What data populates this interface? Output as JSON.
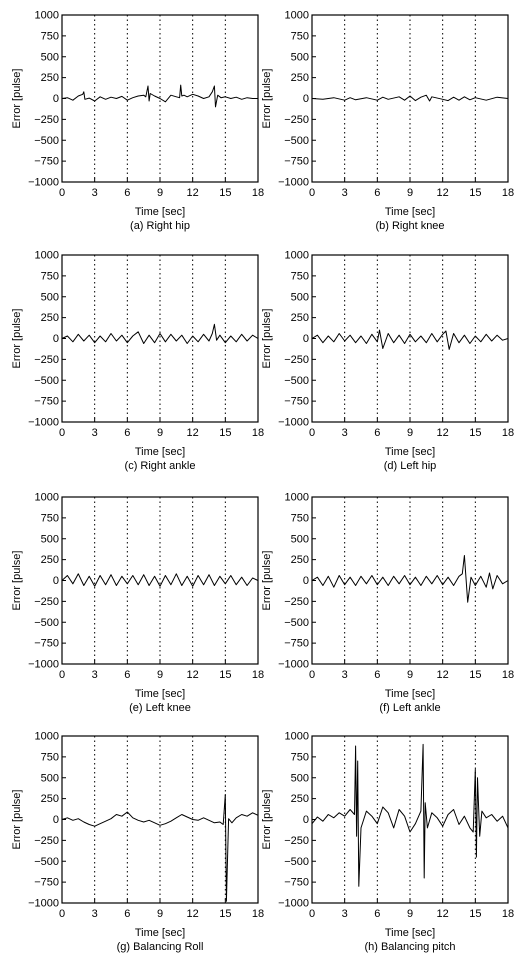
{
  "colors": {
    "axis": "#000000",
    "signal": "#000000",
    "dotted_guides": "#000000",
    "background": "#ffffff"
  },
  "chart_data": [
    {
      "type": "line",
      "caption": "(a) Right hip",
      "xlabel": "Time [sec]",
      "ylabel": "Error [pulse]",
      "xlim": [
        0,
        18
      ],
      "ylim": [
        -1000,
        1000
      ],
      "xticks": [
        0,
        3,
        6,
        9,
        12,
        15,
        18
      ],
      "yticks": [
        1000,
        750,
        500,
        250,
        0,
        -250,
        -500,
        -750,
        -1000
      ],
      "vlines": [
        3,
        6,
        9,
        12,
        15
      ],
      "grid": false,
      "series": [
        {
          "x": [
            0,
            0.5,
            1,
            1.5,
            1.9,
            2.0,
            2.1,
            2.5,
            3,
            3.5,
            4,
            4.5,
            5,
            5.5,
            6,
            6.5,
            7,
            7.5,
            7.7,
            7.9,
            8.0,
            8.1,
            8.5,
            9,
            9.5,
            10,
            10.5,
            10.8,
            10.9,
            11.0,
            11.2,
            11.5,
            12,
            12.5,
            13,
            13.5,
            13.8,
            14.0,
            14.1,
            14.3,
            14.6,
            15,
            15.5,
            16,
            16.5,
            17,
            17.5,
            18
          ],
          "y": [
            0,
            10,
            -20,
            30,
            50,
            80,
            -10,
            5,
            -30,
            20,
            -10,
            15,
            0,
            25,
            -20,
            10,
            30,
            40,
            20,
            150,
            -30,
            60,
            30,
            0,
            -40,
            40,
            20,
            10,
            160,
            30,
            40,
            20,
            50,
            30,
            0,
            20,
            80,
            150,
            -100,
            40,
            10,
            20,
            0,
            15,
            -10,
            10,
            0,
            0
          ]
        }
      ]
    },
    {
      "type": "line",
      "caption": "(b) Right knee",
      "xlabel": "Time [sec]",
      "ylabel": "Error [pulse]",
      "xlim": [
        0,
        18
      ],
      "ylim": [
        -1000,
        1000
      ],
      "xticks": [
        0,
        3,
        6,
        9,
        12,
        15,
        18
      ],
      "yticks": [
        1000,
        750,
        500,
        250,
        0,
        -250,
        -500,
        -750,
        -1000
      ],
      "vlines": [
        3,
        6,
        9,
        12,
        15
      ],
      "grid": false,
      "series": [
        {
          "x": [
            0,
            1,
            2,
            3,
            3.5,
            4,
            5,
            6,
            6.5,
            7,
            8,
            8.5,
            9,
            9.5,
            10,
            10.5,
            10.8,
            11,
            12,
            12.5,
            13,
            13.5,
            14,
            14.5,
            15,
            16,
            17,
            18
          ],
          "y": [
            0,
            -10,
            10,
            -20,
            10,
            -15,
            10,
            -20,
            15,
            -10,
            20,
            -20,
            30,
            -25,
            15,
            40,
            -30,
            20,
            -10,
            -25,
            15,
            -20,
            20,
            -15,
            10,
            -20,
            15,
            0
          ]
        }
      ]
    },
    {
      "type": "line",
      "caption": "(c) Right ankle",
      "xlabel": "Time [sec]",
      "ylabel": "Error [pulse]",
      "xlim": [
        0,
        18
      ],
      "ylim": [
        -1000,
        1000
      ],
      "xticks": [
        0,
        3,
        6,
        9,
        12,
        15,
        18
      ],
      "yticks": [
        1000,
        750,
        500,
        250,
        0,
        -250,
        -500,
        -750,
        -1000
      ],
      "vlines": [
        3,
        6,
        9,
        12,
        15
      ],
      "grid": false,
      "series": [
        {
          "x": [
            0,
            0.5,
            1,
            1.5,
            2,
            2.5,
            3,
            3.5,
            4,
            4.5,
            5,
            5.5,
            6,
            6.5,
            7,
            7.5,
            8,
            8.5,
            9,
            9.5,
            10,
            10.5,
            11,
            11.5,
            12,
            12.5,
            13,
            13.5,
            13.8,
            14.0,
            14.2,
            14.5,
            15,
            15.5,
            16,
            16.5,
            17,
            17.5,
            18
          ],
          "y": [
            0,
            30,
            -40,
            50,
            -30,
            40,
            -50,
            30,
            -40,
            60,
            -30,
            40,
            -50,
            30,
            80,
            -60,
            40,
            -50,
            60,
            -40,
            50,
            -30,
            40,
            -60,
            30,
            -40,
            50,
            -30,
            60,
            170,
            -20,
            40,
            -50,
            30,
            -40,
            50,
            -30,
            40,
            0
          ]
        }
      ]
    },
    {
      "type": "line",
      "caption": "(d) Left hip",
      "xlabel": "Time [sec]",
      "ylabel": "Error [pulse]",
      "xlim": [
        0,
        18
      ],
      "ylim": [
        -1000,
        1000
      ],
      "xticks": [
        0,
        3,
        6,
        9,
        12,
        15,
        18
      ],
      "yticks": [
        1000,
        750,
        500,
        250,
        0,
        -250,
        -500,
        -750,
        -1000
      ],
      "vlines": [
        3,
        6,
        9,
        12,
        15
      ],
      "grid": false,
      "series": [
        {
          "x": [
            0,
            0.5,
            1,
            1.5,
            2,
            2.5,
            3,
            3.5,
            4,
            4.5,
            5,
            5.5,
            6,
            6.2,
            6.5,
            7,
            7.5,
            8,
            8.5,
            9,
            9.5,
            10,
            10.5,
            11,
            11.5,
            12,
            12.3,
            12.6,
            13,
            13.5,
            14,
            14.5,
            15,
            15.5,
            16,
            16.5,
            17,
            17.5,
            18
          ],
          "y": [
            0,
            40,
            -50,
            30,
            -40,
            60,
            -30,
            40,
            -50,
            30,
            -60,
            50,
            -40,
            100,
            -120,
            60,
            -50,
            40,
            -60,
            50,
            -40,
            30,
            -50,
            60,
            -40,
            50,
            90,
            -130,
            60,
            -50,
            40,
            -60,
            30,
            -40,
            50,
            -30,
            40,
            -20,
            0
          ]
        }
      ]
    },
    {
      "type": "line",
      "caption": "(e) Left knee",
      "xlabel": "Time [sec]",
      "ylabel": "Error [pulse]",
      "xlim": [
        0,
        18
      ],
      "ylim": [
        -1000,
        1000
      ],
      "xticks": [
        0,
        3,
        6,
        9,
        12,
        15,
        18
      ],
      "yticks": [
        1000,
        750,
        500,
        250,
        0,
        -250,
        -500,
        -750,
        -1000
      ],
      "vlines": [
        3,
        6,
        9,
        12,
        15
      ],
      "grid": false,
      "series": [
        {
          "x": [
            0,
            0.5,
            1,
            1.5,
            2,
            2.5,
            3,
            3.5,
            4,
            4.5,
            5,
            5.5,
            6,
            6.5,
            7,
            7.5,
            8,
            8.5,
            9,
            9.5,
            10,
            10.5,
            11,
            11.5,
            12,
            12.5,
            13,
            13.5,
            14,
            14.5,
            15,
            15.5,
            16,
            16.5,
            17,
            17.5,
            18
          ],
          "y": [
            0,
            60,
            -40,
            80,
            -60,
            50,
            -70,
            60,
            -50,
            70,
            -60,
            50,
            -40,
            60,
            -50,
            70,
            -60,
            50,
            -70,
            60,
            -50,
            80,
            -60,
            50,
            -70,
            60,
            -50,
            70,
            -60,
            50,
            -40,
            60,
            -50,
            40,
            -60,
            30,
            0
          ]
        }
      ]
    },
    {
      "type": "line",
      "caption": "(f) Left ankle",
      "xlabel": "Time [sec]",
      "ylabel": "Error [pulse]",
      "xlim": [
        0,
        18
      ],
      "ylim": [
        -1000,
        1000
      ],
      "xticks": [
        0,
        3,
        6,
        9,
        12,
        15,
        18
      ],
      "yticks": [
        1000,
        750,
        500,
        250,
        0,
        -250,
        -500,
        -750,
        -1000
      ],
      "vlines": [
        3,
        6,
        9,
        12,
        15
      ],
      "grid": false,
      "series": [
        {
          "x": [
            0,
            0.5,
            1,
            1.5,
            2,
            2.5,
            3,
            3.5,
            4,
            4.5,
            5,
            5.5,
            6,
            6.5,
            7,
            7.5,
            8,
            8.5,
            9,
            9.5,
            10,
            10.5,
            11,
            11.5,
            12,
            12.5,
            13,
            13.5,
            13.8,
            14.0,
            14.3,
            14.6,
            15,
            15.5,
            16,
            16.3,
            16.6,
            17,
            17.5,
            18
          ],
          "y": [
            0,
            40,
            -60,
            50,
            -80,
            60,
            -50,
            40,
            -60,
            50,
            -40,
            60,
            -50,
            40,
            -60,
            50,
            -40,
            60,
            -50,
            40,
            -60,
            50,
            -40,
            60,
            -50,
            40,
            -60,
            50,
            80,
            300,
            -260,
            40,
            -60,
            50,
            -80,
            90,
            -100,
            60,
            -40,
            0
          ]
        }
      ]
    },
    {
      "type": "line",
      "caption": "(g) Balancing Roll",
      "xlabel": "Time [sec]",
      "ylabel": "Error [pulse]",
      "xlim": [
        0,
        18
      ],
      "ylim": [
        -1000,
        1000
      ],
      "xticks": [
        0,
        3,
        6,
        9,
        12,
        15,
        18
      ],
      "yticks": [
        1000,
        750,
        500,
        250,
        0,
        -250,
        -500,
        -750,
        -1000
      ],
      "vlines": [
        3,
        6,
        9,
        12,
        15
      ],
      "grid": false,
      "series": [
        {
          "x": [
            0,
            0.5,
            1,
            1.5,
            2,
            2.5,
            3,
            3.5,
            4,
            4.5,
            5,
            5.5,
            6,
            6.5,
            7,
            7.5,
            8,
            8.5,
            9,
            9.5,
            10,
            10.5,
            11,
            11.5,
            12,
            12.5,
            13,
            13.5,
            14,
            14.5,
            14.8,
            15.0,
            15.1,
            15.3,
            15.6,
            16,
            16.5,
            17,
            17.5,
            18
          ],
          "y": [
            0,
            20,
            -10,
            10,
            -30,
            -60,
            -80,
            -50,
            -20,
            10,
            60,
            40,
            90,
            20,
            -10,
            -30,
            -10,
            -40,
            -70,
            -50,
            -20,
            20,
            60,
            30,
            0,
            -10,
            20,
            -10,
            -40,
            -30,
            -60,
            300,
            -980,
            10,
            -40,
            20,
            60,
            40,
            80,
            50
          ]
        }
      ]
    },
    {
      "type": "line",
      "caption": "(h) Balancing pitch",
      "xlabel": "Time [sec]",
      "ylabel": "Error [pulse]",
      "xlim": [
        0,
        18
      ],
      "ylim": [
        -1000,
        1000
      ],
      "xticks": [
        0,
        3,
        6,
        9,
        12,
        15,
        18
      ],
      "yticks": [
        1000,
        750,
        500,
        250,
        0,
        -250,
        -500,
        -750,
        -1000
      ],
      "vlines": [
        3,
        6,
        9,
        12,
        15
      ],
      "grid": false,
      "series": [
        {
          "x": [
            0,
            0.5,
            1,
            1.5,
            2,
            2.5,
            3,
            3.5,
            3.9,
            4.0,
            4.1,
            4.2,
            4.3,
            4.5,
            5,
            5.5,
            6,
            6.5,
            7,
            7.5,
            8,
            8.5,
            9,
            9.5,
            10,
            10.2,
            10.3,
            10.4,
            10.6,
            11,
            11.5,
            12,
            12.5,
            13,
            13.5,
            14,
            14.5,
            14.8,
            15.0,
            15.1,
            15.2,
            15.4,
            15.6,
            16,
            16.5,
            17,
            17.5,
            18
          ],
          "y": [
            -50,
            30,
            -20,
            60,
            20,
            80,
            40,
            120,
            60,
            880,
            -200,
            700,
            -800,
            -100,
            100,
            40,
            -50,
            150,
            80,
            -100,
            120,
            40,
            -150,
            -50,
            100,
            900,
            -700,
            200,
            -100,
            80,
            20,
            -80,
            60,
            120,
            -60,
            40,
            -100,
            -150,
            600,
            -450,
            500,
            -200,
            100,
            20,
            60,
            -20,
            40,
            -100
          ]
        }
      ]
    }
  ]
}
